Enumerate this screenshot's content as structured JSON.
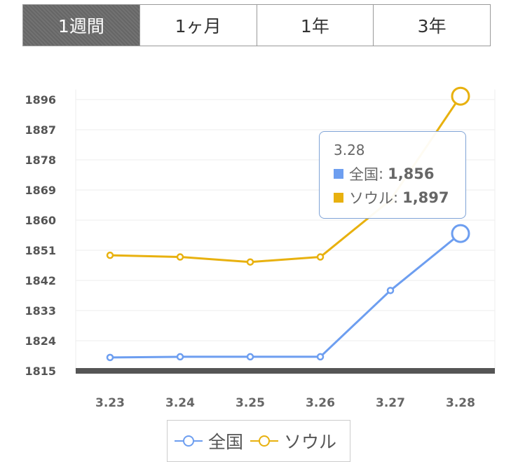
{
  "tabs": [
    {
      "label": "1週間",
      "active": true
    },
    {
      "label": "1ヶ月",
      "active": false
    },
    {
      "label": "1年",
      "active": false
    },
    {
      "label": "3年",
      "active": false
    }
  ],
  "tooltip": {
    "date": "3.28",
    "rows": [
      {
        "name": "全国",
        "value": "1,856",
        "color": "#6d9ef0"
      },
      {
        "name": "ソウル",
        "value": "1,897",
        "color": "#e8b10f"
      }
    ]
  },
  "legend": [
    {
      "name": "全国",
      "color": "#6d9ef0"
    },
    {
      "name": "ソウル",
      "color": "#e8b10f"
    }
  ],
  "chart_data": {
    "type": "line",
    "x": [
      "3.23",
      "3.24",
      "3.25",
      "3.26",
      "3.27",
      "3.28"
    ],
    "series": [
      {
        "name": "全国",
        "color": "#6d9ef0",
        "values": [
          1819,
          1819.2,
          1819.2,
          1819.2,
          1839,
          1856
        ]
      },
      {
        "name": "ソウル",
        "color": "#e8b10f",
        "values": [
          1849.5,
          1849,
          1847.5,
          1849,
          1866,
          1897
        ]
      }
    ],
    "yticks": [
      1815,
      1824,
      1833,
      1842,
      1851,
      1860,
      1869,
      1878,
      1887,
      1896
    ],
    "ylim": [
      1815,
      1899
    ],
    "grid": true,
    "legend": "bottom",
    "highlighted_index": 5
  }
}
